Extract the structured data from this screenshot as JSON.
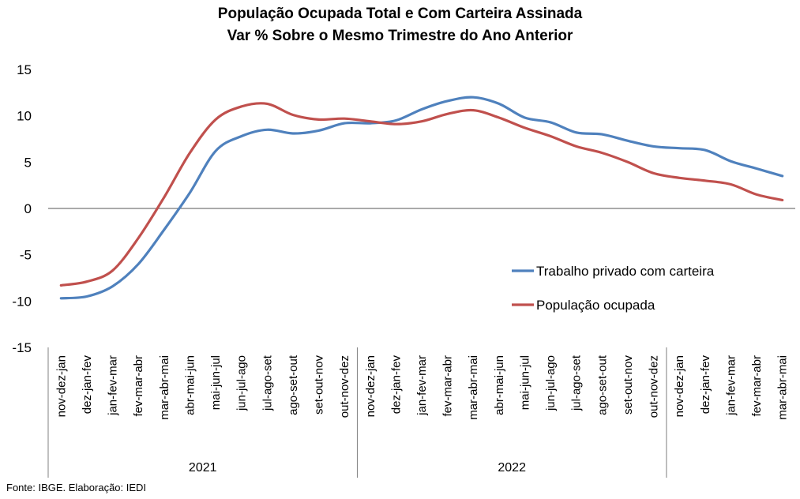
{
  "title_line1": "População Ocupada Total e Com Carteira Assinada",
  "title_line2": "Var % Sobre o Mesmo Trimestre do Ano Anterior",
  "footer": "Fonte: IBGE. Elaboração: IEDI",
  "chart_data": {
    "type": "line",
    "title": "População Ocupada Total e Com Carteira Assinada — Var % Sobre o Mesmo Trimestre do Ano Anterior",
    "categories": [
      "nov-dez-jan",
      "dez-jan-fev",
      "jan-fev-mar",
      "fev-mar-abr",
      "mar-abr-mai",
      "abr-mai-jun",
      "mai-jun-jul",
      "jun-jul-ago",
      "jul-ago-set",
      "ago-set-out",
      "set-out-nov",
      "out-nov-dez",
      "nov-dez-jan",
      "dez-jan-fev",
      "jan-fev-mar",
      "fev-mar-abr",
      "mar-abr-mai",
      "abr-mai-jun",
      "mai-jun-jul",
      "jun-jul-ago",
      "jul-ago-set",
      "ago-set-out",
      "set-out-nov",
      "out-nov-dez",
      "nov-dez-jan",
      "dez-jan-fev",
      "jan-fev-mar",
      "fev-mar-abr",
      "mar-abr-mai"
    ],
    "year_groups": [
      {
        "label": "2021",
        "start": 0,
        "end": 11
      },
      {
        "label": "2022",
        "start": 12,
        "end": 23
      },
      {
        "label": "",
        "start": 24,
        "end": 28
      }
    ],
    "series": [
      {
        "name": "Trabalho privado com carteira",
        "color": "#4F81BD",
        "values": [
          -9.7,
          -9.5,
          -8.4,
          -6.0,
          -2.3,
          1.7,
          6.2,
          7.8,
          8.5,
          8.1,
          8.4,
          9.2,
          9.2,
          9.5,
          10.7,
          11.6,
          12.0,
          11.3,
          9.8,
          9.3,
          8.2,
          8.0,
          7.3,
          6.7,
          6.5,
          6.3,
          5.1,
          4.3,
          3.5
        ]
      },
      {
        "name": "População ocupada",
        "color": "#C0504D",
        "values": [
          -8.3,
          -7.9,
          -6.7,
          -3.2,
          1.2,
          6.0,
          9.6,
          11.0,
          11.3,
          10.1,
          9.6,
          9.7,
          9.4,
          9.1,
          9.4,
          10.2,
          10.6,
          9.8,
          8.7,
          7.8,
          6.7,
          6.0,
          5.0,
          3.8,
          3.3,
          3.0,
          2.6,
          1.5,
          0.9
        ]
      }
    ],
    "ylim": [
      -15,
      15
    ],
    "yticks": [
      15,
      10,
      5,
      0,
      -5,
      -10,
      -15
    ],
    "legend_position": "right"
  }
}
